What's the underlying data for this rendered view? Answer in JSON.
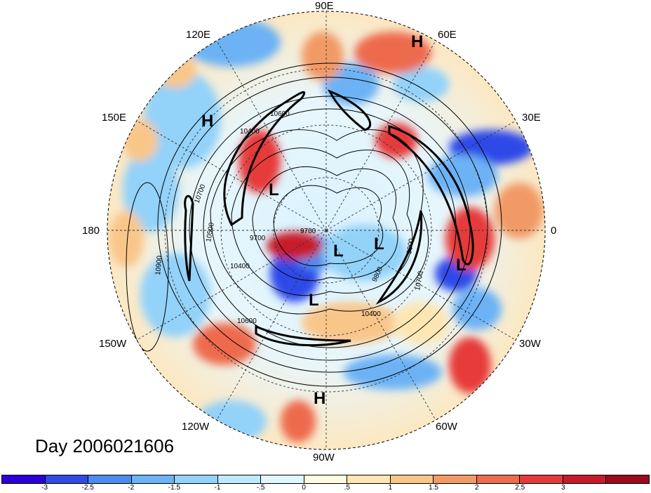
{
  "map": {
    "projection": "north-polar-stereographic",
    "longitude_labels": [
      "90E",
      "60E",
      "30E",
      "0",
      "30W",
      "60W",
      "90W",
      "120W",
      "150W",
      "180",
      "150E",
      "120E"
    ],
    "pressure_systems": [
      {
        "type": "H",
        "name": "high-120E-60N"
      },
      {
        "type": "H",
        "name": "high-150E"
      },
      {
        "type": "H",
        "name": "high-90W-tropics"
      },
      {
        "type": "L",
        "name": "low-north-pacific"
      },
      {
        "type": "L",
        "name": "low-central-arctic"
      },
      {
        "type": "L",
        "name": "low-greenland"
      },
      {
        "type": "L",
        "name": "low-hudson"
      },
      {
        "type": "L",
        "name": "low-atlantic"
      }
    ],
    "contour_labels": [
      "10600",
      "10400",
      "10700",
      "10500",
      "10400",
      "9700",
      "9700",
      "10900",
      "10600",
      "10400",
      "9800",
      "9900",
      "10700"
    ],
    "colors": {
      "strong_negative": "#1a1ad6",
      "negative": "#5aaaf0",
      "weak_negative": "#cdf0ff",
      "neutral": "#fffbe6",
      "weak_positive": "#fbd9a0",
      "positive": "#f2704a",
      "strong_positive": "#b01020",
      "jet_contour": "#000000"
    }
  },
  "title": "Day 2006021606",
  "colorbar": {
    "colors": [
      "#2b00d8",
      "#2f4ae8",
      "#4a8cf0",
      "#6cb2f5",
      "#93d2f9",
      "#bdeaff",
      "#e2f6ff",
      "#fffbe0",
      "#fde6b3",
      "#f9c68a",
      "#f29a66",
      "#ee6b4d",
      "#e63a3a",
      "#c71b2b",
      "#9b0a1f"
    ],
    "tick_labels": [
      "-3",
      "-2.5",
      "-2",
      "-1.5",
      "-1",
      "-.5",
      "0",
      ".5",
      "1",
      "1.5",
      "2",
      "2.5",
      "3"
    ]
  }
}
